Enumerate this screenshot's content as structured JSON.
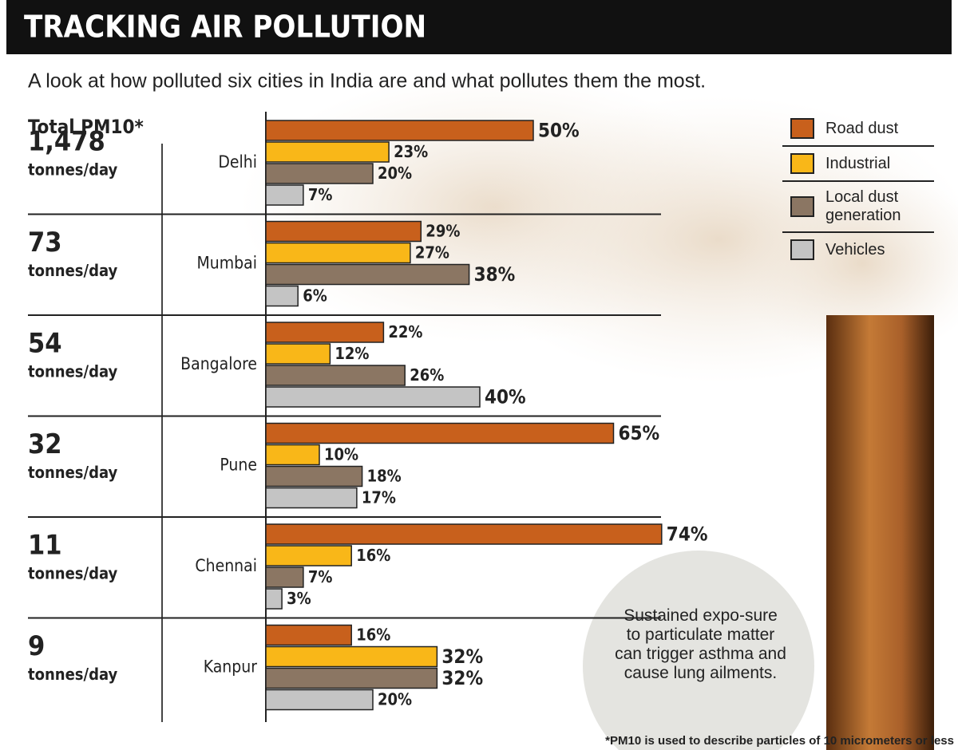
{
  "chart_data": {
    "type": "bar",
    "title": "TRACKING AIR POLLUTION",
    "subtitle": "A look at how polluted six cities in India are and what pollutes them the most.",
    "totals_label": "Total PM10*",
    "totals": [
      "1,478",
      "73",
      "54",
      "32",
      "11",
      "9"
    ],
    "totals_unit": "tonnes/day",
    "categories": [
      "Delhi",
      "Mumbai",
      "Bangalore",
      "Pune",
      "Chennai",
      "Kanpur"
    ],
    "series": [
      {
        "name": "Road dust",
        "color": "#c8601c",
        "values": [
          50,
          29,
          22,
          65,
          74,
          16
        ],
        "value_labels": [
          "50%",
          "29%",
          "22%",
          "65%",
          "74%",
          "16%"
        ]
      },
      {
        "name": "Industrial",
        "color": "#f9b718",
        "values": [
          23,
          27,
          12,
          10,
          16,
          32
        ],
        "value_labels": [
          "23%",
          "27%",
          "12%",
          "10%",
          "16%",
          "32%"
        ]
      },
      {
        "name": "Local dust generation",
        "color": "#8b7663",
        "values": [
          20,
          38,
          26,
          18,
          7,
          32
        ],
        "value_labels": [
          "20%",
          "38%",
          "26%",
          "18%",
          "7%",
          "32%"
        ]
      },
      {
        "name": "Vehicles",
        "color": "#c4c4c4",
        "values": [
          7,
          6,
          40,
          17,
          3,
          20
        ],
        "value_labels": [
          "7%",
          "6%",
          "40%",
          "17%",
          "3%",
          "20%"
        ]
      }
    ],
    "legend": "top-right",
    "annotation": "Sustained expo-sure to particulate matter can trigger asthma and cause lung ailments.",
    "footnote": "*PM10 is used to describe particles of 10 micrometers or less"
  }
}
